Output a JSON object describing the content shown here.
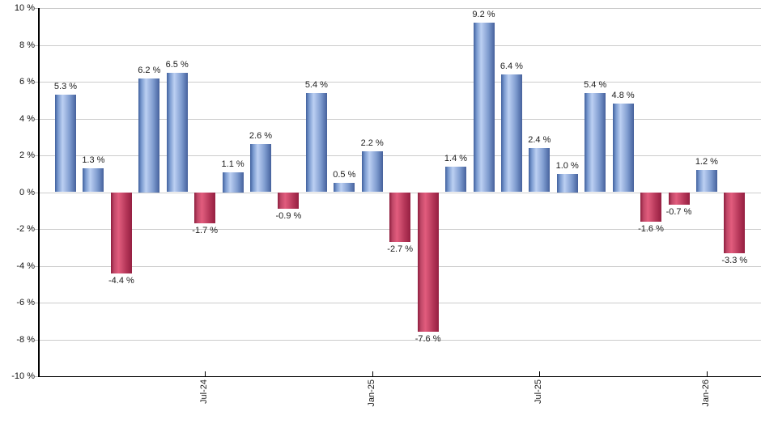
{
  "chart_data": {
    "type": "bar",
    "title": "",
    "xlabel": "",
    "ylabel": "",
    "grid": true,
    "ylim": [
      -10,
      10
    ],
    "y_tick_step": 2,
    "y_tick_values": [
      10,
      8,
      6,
      4,
      2,
      0,
      -2,
      -4,
      -6,
      -8,
      -10
    ],
    "y_tick_labels": [
      "10 %",
      "8 %",
      "6 %",
      "4 %",
      "2 %",
      "0 %",
      "-2 %",
      "-4 %",
      "-6 %",
      "-8 %",
      "-10 %"
    ],
    "x_ticks": [
      {
        "label": "Jul-24",
        "bar_index": 5
      },
      {
        "label": "Jan-25",
        "bar_index": 11
      },
      {
        "label": "Jul-25",
        "bar_index": 17
      },
      {
        "label": "Jan-26",
        "bar_index": 23
      }
    ],
    "values": [
      5.3,
      1.3,
      -4.4,
      6.2,
      6.5,
      -1.7,
      1.1,
      2.6,
      -0.9,
      5.4,
      0.5,
      2.2,
      -2.7,
      -7.6,
      1.4,
      9.2,
      6.4,
      2.4,
      1.0,
      5.4,
      4.8,
      -1.6,
      -0.7,
      1.2,
      -3.3
    ],
    "bar_labels": [
      "5.3 %",
      "1.3 %",
      "-4.4 %",
      "6.2 %",
      "6.5 %",
      "-1.7 %",
      "1.1 %",
      "2.6 %",
      "-0.9 %",
      "5.4 %",
      "0.5 %",
      "2.2 %",
      "-2.7 %",
      "-7.6 %",
      "1.4 %",
      "9.2 %",
      "6.4 %",
      "2.4 %",
      "1.0 %",
      "5.4 %",
      "4.8 %",
      "-1.6 %",
      "-0.7 %",
      "1.2 %",
      "-3.3 %"
    ],
    "positive_color": "#7b9bd0",
    "negative_color": "#c34565",
    "legend": null
  }
}
